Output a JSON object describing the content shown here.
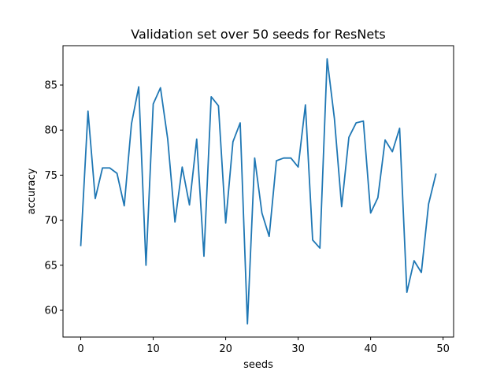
{
  "chart_data": {
    "type": "line",
    "title": "Validation set over 50 seeds for ResNets",
    "xlabel": "seeds",
    "ylabel": "accuracy",
    "xlim": [
      -2.45,
      51.45
    ],
    "ylim": [
      57.03,
      89.37
    ],
    "xticks": [
      0,
      10,
      20,
      30,
      40,
      50
    ],
    "xtick_labels": [
      "0",
      "10",
      "20",
      "30",
      "40",
      "50"
    ],
    "yticks": [
      60,
      65,
      70,
      75,
      80,
      85
    ],
    "ytick_labels": [
      "60",
      "65",
      "70",
      "75",
      "80",
      "85"
    ],
    "grid": false,
    "line_color": "#1f77b4",
    "series": [
      {
        "x": [
          0,
          1,
          2,
          3,
          4,
          5,
          6,
          7,
          8,
          9,
          10,
          11,
          12,
          13,
          14,
          15,
          16,
          17,
          18,
          19,
          20,
          21,
          22,
          23,
          24,
          25,
          26,
          27,
          28,
          29,
          30,
          31,
          32,
          33,
          34,
          35,
          36,
          37,
          38,
          39,
          40,
          41,
          42,
          43,
          44,
          45,
          46,
          47,
          48,
          49
        ],
        "values": [
          67.2,
          82.1,
          72.4,
          75.8,
          75.8,
          75.2,
          71.6,
          80.7,
          84.8,
          65.0,
          82.9,
          84.7,
          79.0,
          69.8,
          75.9,
          71.7,
          79.0,
          66.0,
          83.7,
          82.7,
          69.7,
          78.7,
          80.8,
          58.5,
          76.9,
          70.8,
          68.2,
          76.6,
          76.9,
          76.9,
          75.9,
          82.8,
          67.8,
          66.9,
          87.9,
          81.3,
          71.5,
          79.2,
          80.8,
          81.0,
          70.8,
          72.5,
          78.9,
          77.6,
          80.2,
          62.0,
          65.5,
          64.2,
          71.8,
          75.1
        ]
      }
    ]
  }
}
